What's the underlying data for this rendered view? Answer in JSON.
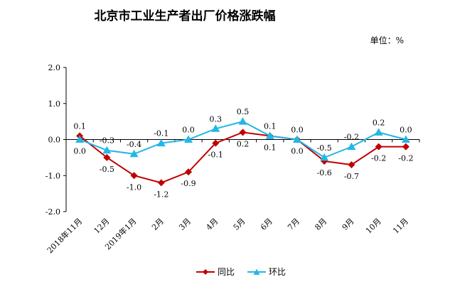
{
  "chart_data": {
    "type": "line",
    "title": "北京市工业生产者出厂价格涨跌幅",
    "unit": "单位：%",
    "categories": [
      "2018年11月",
      "12月",
      "2019年1月",
      "2月",
      "3月",
      "4月",
      "5月",
      "6月",
      "7月",
      "8月",
      "9月",
      "10月",
      "11月"
    ],
    "ylim": [
      -2.0,
      2.0
    ],
    "yticks": [
      "2.0",
      "1.0",
      "0.0",
      "-1.0",
      "-2.0"
    ],
    "ytick_values": [
      2.0,
      1.0,
      0.0,
      -1.0,
      -2.0
    ],
    "grid": false,
    "legend_position": "bottom",
    "series": [
      {
        "name": "同比",
        "color": "#C00000",
        "marker": "diamond",
        "values": [
          0.1,
          -0.5,
          -1.0,
          -1.2,
          -0.9,
          -0.1,
          0.2,
          0.1,
          0.0,
          -0.6,
          -0.7,
          -0.2,
          -0.2
        ],
        "labels": [
          "0.1",
          "-0.5",
          "-1.0",
          "-1.2",
          "-0.9",
          "-0.1",
          "0.2",
          "0.1",
          "0.0",
          "-0.6",
          "-0.7",
          "-0.2",
          "-0.2"
        ]
      },
      {
        "name": "环比",
        "color": "#23B7E5",
        "marker": "triangle",
        "values": [
          0.0,
          -0.3,
          -0.4,
          -0.1,
          0.0,
          0.3,
          0.5,
          0.1,
          0.0,
          -0.5,
          -0.2,
          0.2,
          0.0
        ],
        "labels": [
          "0.0",
          "-0.3",
          "-0.4",
          "-0.1",
          "0.0",
          "0.3",
          "0.5",
          "0.1",
          "0.0",
          "-0.5",
          "-0.2",
          "0.2",
          "0.0"
        ]
      }
    ]
  }
}
